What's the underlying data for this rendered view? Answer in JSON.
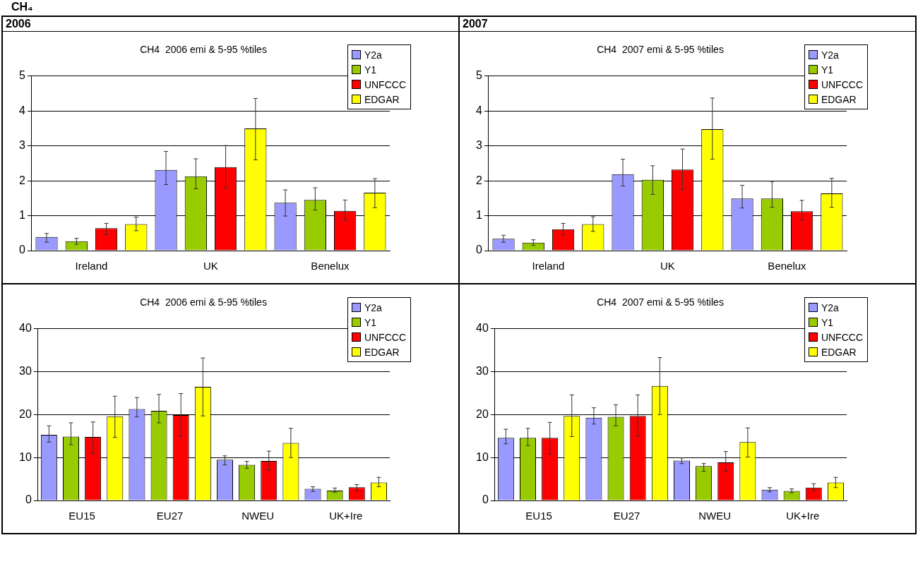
{
  "chart_data": [
    {
      "type": "bar",
      "title": "CH4  2006 emi & 5-95 %tiles",
      "annotations": [
        "CH₄",
        "2006"
      ],
      "categories": [
        "Ireland",
        "UK",
        "Benelux"
      ],
      "ylim": [
        0,
        5
      ],
      "yticks": [
        0,
        1,
        2,
        3,
        4,
        5
      ],
      "grid": "y",
      "legend": "top right",
      "series": [
        {
          "name": "Y2a",
          "color": "#9999ff",
          "values": [
            0.39,
            2.31,
            1.37
          ],
          "errors": [
            [
              0.24,
              0.49
            ],
            [
              1.89,
              2.84
            ],
            [
              0.99,
              1.74
            ]
          ]
        },
        {
          "name": "Y1",
          "color": "#99cc00",
          "values": [
            0.27,
            2.13,
            1.45
          ],
          "errors": [
            [
              0.18,
              0.35
            ],
            [
              1.77,
              2.63
            ],
            [
              1.16,
              1.8
            ]
          ]
        },
        {
          "name": "UNFCCC",
          "color": "#ff0000",
          "values": [
            0.64,
            2.39,
            1.14
          ],
          "errors": [
            [
              0.46,
              0.78
            ],
            [
              1.8,
              3.01
            ],
            [
              0.86,
              1.45
            ]
          ]
        },
        {
          "name": "EDGAR",
          "color": "#ffff00",
          "values": [
            0.76,
            3.5,
            1.66
          ],
          "errors": [
            [
              0.57,
              0.96
            ],
            [
              2.6,
              4.36
            ],
            [
              1.23,
              2.06
            ]
          ]
        }
      ]
    },
    {
      "type": "bar",
      "title": "CH4  2007 emi & 5-95 %tiles",
      "annotations": [
        "2007"
      ],
      "categories": [
        "Ireland",
        "UK",
        "Benelux"
      ],
      "ylim": [
        0,
        5
      ],
      "yticks": [
        0,
        1,
        2,
        3,
        4,
        5
      ],
      "grid": "y",
      "legend": "top right",
      "series": [
        {
          "name": "Y2a",
          "color": "#9999ff",
          "values": [
            0.34,
            2.19,
            1.49
          ],
          "errors": [
            [
              0.24,
              0.44
            ],
            [
              1.85,
              2.62
            ],
            [
              1.22,
              1.87
            ]
          ]
        },
        {
          "name": "Y1",
          "color": "#99cc00",
          "values": [
            0.23,
            2.03,
            1.49
          ],
          "errors": [
            [
              0.15,
              0.31
            ],
            [
              1.61,
              2.43
            ],
            [
              1.24,
              1.98
            ]
          ]
        },
        {
          "name": "UNFCCC",
          "color": "#ff0000",
          "values": [
            0.61,
            2.32,
            1.13
          ],
          "errors": [
            [
              0.45,
              0.78
            ],
            [
              1.75,
              2.91
            ],
            [
              0.86,
              1.44
            ]
          ]
        },
        {
          "name": "EDGAR",
          "color": "#ffff00",
          "values": [
            0.76,
            3.48,
            1.64
          ],
          "errors": [
            [
              0.55,
              0.97
            ],
            [
              2.62,
              4.37
            ],
            [
              1.24,
              2.07
            ]
          ]
        }
      ]
    },
    {
      "type": "bar",
      "title": "CH4  2006 emi & 5-95 %tiles",
      "categories": [
        "EU15",
        "EU27",
        "NWEU",
        "UK+Ire"
      ],
      "ylim": [
        0,
        40
      ],
      "yticks": [
        0,
        10,
        20,
        30,
        40
      ],
      "grid": "y",
      "legend": "top right",
      "series": [
        {
          "name": "Y2a",
          "color": "#9999ff",
          "values": [
            15.3,
            21.3,
            9.5,
            2.7
          ],
          "errors": [
            [
              13.6,
              17.4
            ],
            [
              19.5,
              24.0
            ],
            [
              8.3,
              10.4
            ],
            [
              2.1,
              3.2
            ]
          ]
        },
        {
          "name": "Y1",
          "color": "#99cc00",
          "values": [
            14.9,
            20.9,
            8.3,
            2.3
          ],
          "errors": [
            [
              13.0,
              18.1
            ],
            [
              18.1,
              24.7
            ],
            [
              7.5,
              9.1
            ],
            [
              1.9,
              2.9
            ]
          ]
        },
        {
          "name": "UNFCCC",
          "color": "#ff0000",
          "values": [
            14.8,
            19.9,
            9.2,
            3.1
          ],
          "errors": [
            [
              11.0,
              18.3
            ],
            [
              14.9,
              24.9
            ],
            [
              7.1,
              11.5
            ],
            [
              2.3,
              3.7
            ]
          ]
        },
        {
          "name": "EDGAR",
          "color": "#ffff00",
          "values": [
            19.6,
            26.5,
            13.4,
            4.2
          ],
          "errors": [
            [
              14.7,
              24.3
            ],
            [
              19.7,
              33.2
            ],
            [
              10.0,
              16.8
            ],
            [
              3.2,
              5.4
            ]
          ]
        }
      ]
    },
    {
      "type": "bar",
      "title": "CH4  2007 emi & 5-95 %tiles",
      "categories": [
        "EU15",
        "EU27",
        "NWEU",
        "UK+Ire"
      ],
      "ylim": [
        0,
        40
      ],
      "yticks": [
        0,
        10,
        20,
        30,
        40
      ],
      "grid": "y",
      "legend": "top right",
      "series": [
        {
          "name": "Y2a",
          "color": "#9999ff",
          "values": [
            14.6,
            19.3,
            9.3,
            2.5
          ],
          "errors": [
            [
              13.2,
              16.6
            ],
            [
              17.8,
              21.6
            ],
            [
              8.6,
              9.9
            ],
            [
              2.0,
              3.0
            ]
          ]
        },
        {
          "name": "Y1",
          "color": "#99cc00",
          "values": [
            14.6,
            19.5,
            8.0,
            2.2
          ],
          "errors": [
            [
              12.8,
              16.8
            ],
            [
              17.4,
              22.3
            ],
            [
              6.8,
              8.6
            ],
            [
              1.8,
              2.7
            ]
          ]
        },
        {
          "name": "UNFCCC",
          "color": "#ff0000",
          "values": [
            14.6,
            19.7,
            8.9,
            3.0
          ],
          "errors": [
            [
              10.8,
              18.2
            ],
            [
              14.9,
              24.6
            ],
            [
              6.8,
              11.4
            ],
            [
              2.2,
              3.9
            ]
          ]
        },
        {
          "name": "EDGAR",
          "color": "#ffff00",
          "values": [
            19.7,
            26.7,
            13.6,
            4.2
          ],
          "errors": [
            [
              14.9,
              24.6
            ],
            [
              20.0,
              33.3
            ],
            [
              10.1,
              16.9
            ],
            [
              3.0,
              5.4
            ]
          ]
        }
      ]
    }
  ]
}
